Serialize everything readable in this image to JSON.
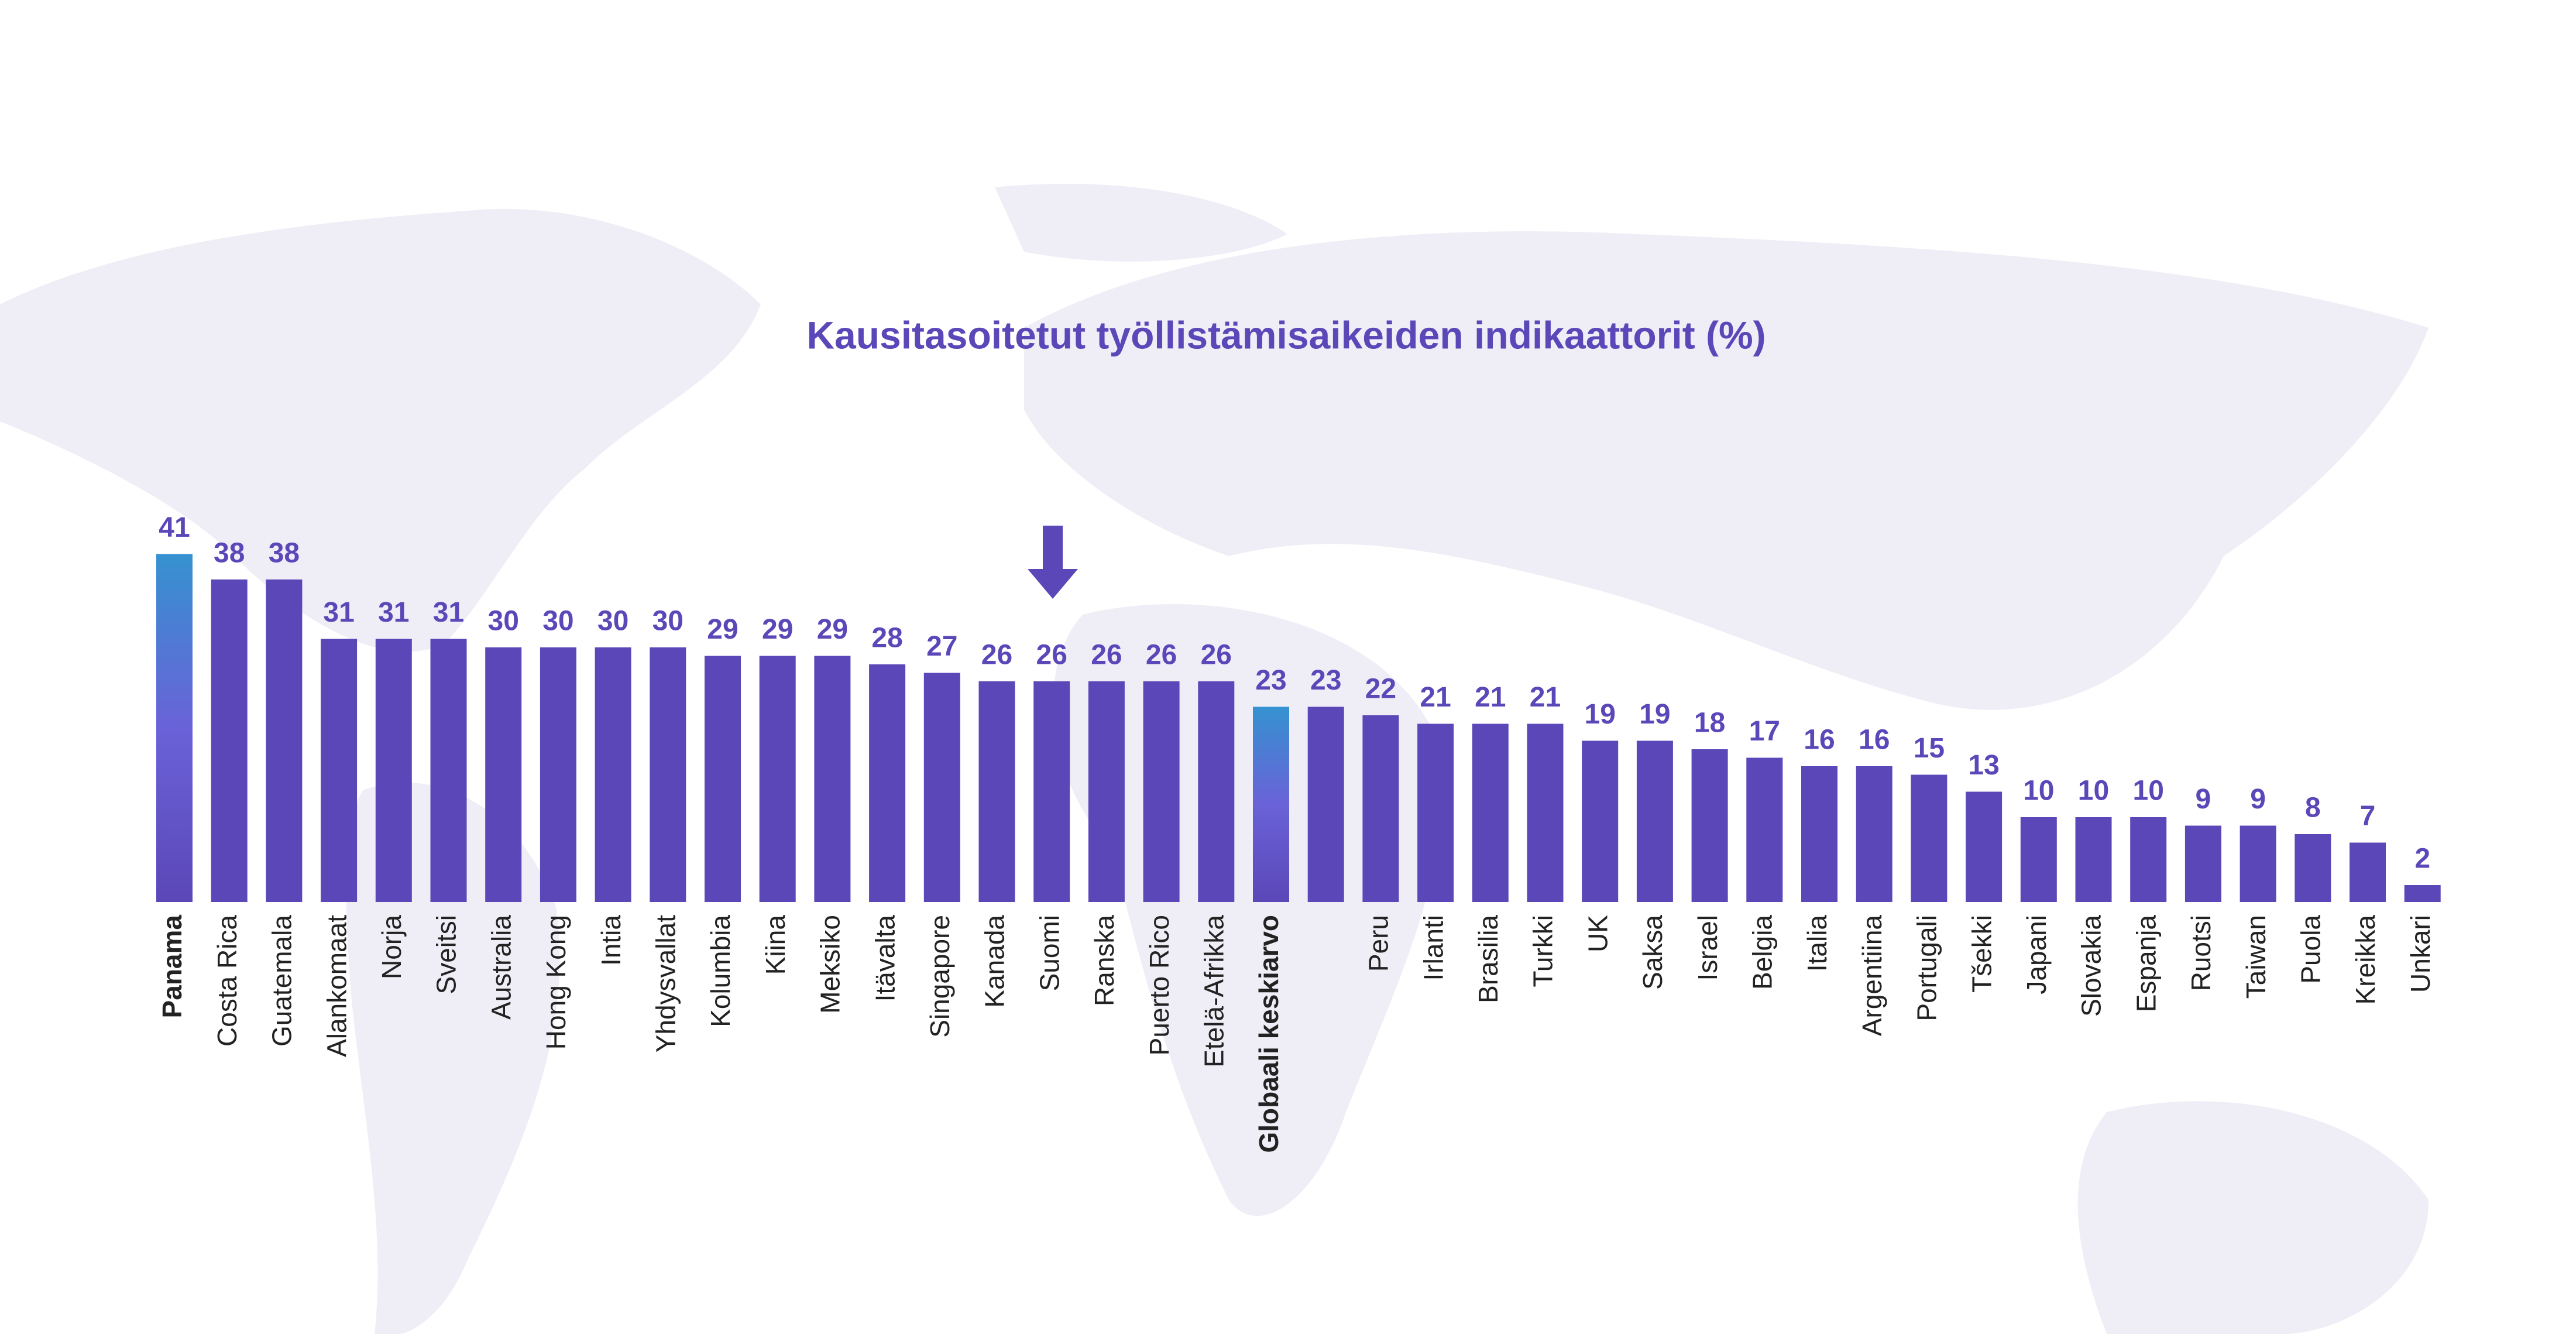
{
  "chart_data": {
    "type": "bar",
    "title": "Kausitasoitetut työllistämisaikeiden indikaattorit (%)",
    "categories": [
      "Panama",
      "Costa Rica",
      "Guatemala",
      "Alankomaat",
      "Norja",
      "Sveitsi",
      "Australia",
      "Hong Kong",
      "Intia",
      "Yhdysvallat",
      "Kolumbia",
      "Kiina",
      "Meksiko",
      "Itävalta",
      "Singapore",
      "Kanada",
      "Suomi",
      "Ranska",
      "Puerto Rico",
      "Etelä-Afrikka",
      "Globaali keskiarvo",
      null,
      "Peru",
      "Irlanti",
      "Brasilia",
      "Turkki",
      "UK",
      "Saksa",
      "Israel",
      "Belgia",
      "Italia",
      "Argentiina",
      "Portugali",
      "Tšekki",
      "Japani",
      "Slovakia",
      "Espanja",
      "Ruotsi",
      "Taiwan",
      "Puola",
      "Kreikka",
      "Unkari"
    ],
    "values": [
      41,
      38,
      38,
      31,
      31,
      31,
      30,
      30,
      30,
      30,
      29,
      29,
      29,
      28,
      27,
      26,
      26,
      26,
      26,
      26,
      23,
      23,
      22,
      21,
      21,
      21,
      19,
      19,
      18,
      17,
      16,
      16,
      15,
      13,
      10,
      10,
      10,
      9,
      9,
      8,
      7,
      2
    ],
    "color": "#5b47b8",
    "highlight_color": "#3592d0",
    "colors": [
      "#3592d0",
      "#5b47b8",
      "#5b47b8",
      "#5b47b8",
      "#5b47b8",
      "#5b47b8",
      "#5b47b8",
      "#5b47b8",
      "#5b47b8",
      "#5b47b8",
      "#5b47b8",
      "#5b47b8",
      "#5b47b8",
      "#5b47b8",
      "#5b47b8",
      "#5b47b8",
      "#5b47b8",
      "#5b47b8",
      "#5b47b8",
      "#5b47b8",
      "#3592d0",
      "#5b47b8",
      "#5b47b8",
      "#5b47b8",
      "#5b47b8",
      "#5b47b8",
      "#5b47b8",
      "#5b47b8",
      "#5b47b8",
      "#5b47b8",
      "#5b47b8",
      "#5b47b8",
      "#5b47b8",
      "#5b47b8",
      "#5b47b8",
      "#5b47b8",
      "#5b47b8",
      "#5b47b8",
      "#5b47b8",
      "#5b47b8",
      "#5b47b8",
      "#5b47b8"
    ]
  }
}
